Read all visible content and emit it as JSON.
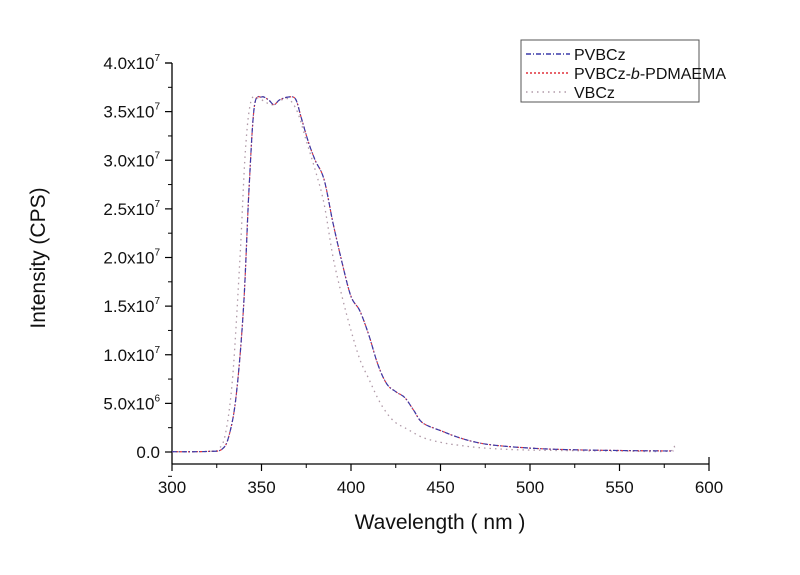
{
  "chart_data": {
    "type": "line",
    "title": "",
    "xlabel": "Wavelength ( nm )",
    "ylabel": "Intensity (CPS)",
    "xlim": [
      300,
      600
    ],
    "ylim": [
      -2500000,
      40000000
    ],
    "x_ticks": [
      300,
      350,
      400,
      450,
      500,
      550,
      600
    ],
    "x_tick_labels": [
      "300",
      "350",
      "400",
      "450",
      "500",
      "550",
      "600"
    ],
    "y_ticks": [
      0,
      5000000,
      10000000,
      15000000,
      20000000,
      25000000,
      30000000,
      35000000,
      40000000
    ],
    "y_tick_labels": [
      {
        "mantissa": "0.0",
        "exp": ""
      },
      {
        "mantissa": "5.0x10",
        "exp": "6"
      },
      {
        "mantissa": "1.0x10",
        "exp": "7"
      },
      {
        "mantissa": "1.5x10",
        "exp": "7"
      },
      {
        "mantissa": "2.0x10",
        "exp": "7"
      },
      {
        "mantissa": "2.5x10",
        "exp": "7"
      },
      {
        "mantissa": "3.0x10",
        "exp": "7"
      },
      {
        "mantissa": "3.5x10",
        "exp": "7"
      },
      {
        "mantissa": "4.0x10",
        "exp": "7"
      }
    ],
    "grid": false,
    "legend_position": "top-right",
    "series": [
      {
        "name": "PVBCz",
        "name_parts": [
          "PVBCz"
        ],
        "color": "#3a3aa8",
        "dash": "dashdot",
        "x": [
          300,
          320,
          328,
          332,
          336,
          340,
          343,
          346,
          350,
          354,
          357,
          360,
          365,
          369,
          372,
          376,
          380,
          385,
          390,
          395,
          400,
          405,
          410,
          415,
          420,
          425,
          430,
          435,
          440,
          450,
          460,
          470,
          480,
          500,
          520,
          550,
          580
        ],
        "y": [
          30000,
          60000,
          300000,
          1800000,
          6000000,
          15000000,
          27000000,
          35500000,
          36500000,
          36200000,
          35700000,
          36200000,
          36500000,
          36300000,
          34500000,
          32000000,
          30000000,
          28000000,
          23500000,
          19500000,
          16000000,
          14500000,
          12000000,
          9000000,
          7000000,
          6200000,
          5600000,
          4300000,
          3000000,
          2200000,
          1500000,
          1000000,
          700000,
          400000,
          250000,
          150000,
          100000
        ]
      },
      {
        "name": "PVBCz-b-PDMAEMA",
        "name_parts": [
          "PVBCz-",
          "b",
          "-PDMAEMA"
        ],
        "color": "#e0303a",
        "dash": "dot",
        "x": [
          300,
          320,
          328,
          332,
          336,
          340,
          343,
          346,
          350,
          354,
          357,
          360,
          365,
          369,
          372,
          376,
          380,
          385,
          390,
          395,
          400,
          405,
          410,
          415,
          420,
          425,
          430,
          435,
          440,
          450,
          460,
          470,
          480,
          500,
          520,
          550,
          580
        ],
        "y": [
          30000,
          60000,
          300000,
          1800000,
          6000000,
          15000000,
          27000000,
          35500000,
          36500000,
          36200000,
          35700000,
          36200000,
          36500000,
          36300000,
          34500000,
          32000000,
          30000000,
          28000000,
          23500000,
          19500000,
          16000000,
          14500000,
          12000000,
          9000000,
          7000000,
          6200000,
          5600000,
          4300000,
          3000000,
          2200000,
          1500000,
          1000000,
          700000,
          400000,
          250000,
          150000,
          100000
        ]
      },
      {
        "name": "VBCz",
        "name_parts": [
          "VBCz"
        ],
        "color": "#b09aa8",
        "dash": "sparse-dot",
        "x": [
          300,
          320,
          326,
          330,
          334,
          338,
          341,
          344,
          348,
          352,
          356,
          360,
          365,
          370,
          375,
          380,
          385,
          390,
          395,
          400,
          405,
          410,
          415,
          420,
          425,
          430,
          440,
          450,
          460,
          475,
          500,
          550,
          578,
          580
        ],
        "y": [
          30000,
          60000,
          300000,
          2000000,
          8000000,
          20000000,
          31000000,
          36000000,
          36400000,
          36000000,
          35700000,
          36100000,
          36300000,
          35000000,
          32000000,
          29000000,
          25500000,
          20000000,
          16000000,
          12500000,
          9500000,
          7500000,
          5500000,
          4000000,
          3000000,
          2500000,
          1500000,
          1000000,
          700000,
          400000,
          200000,
          100000,
          100000,
          900000
        ]
      }
    ]
  }
}
